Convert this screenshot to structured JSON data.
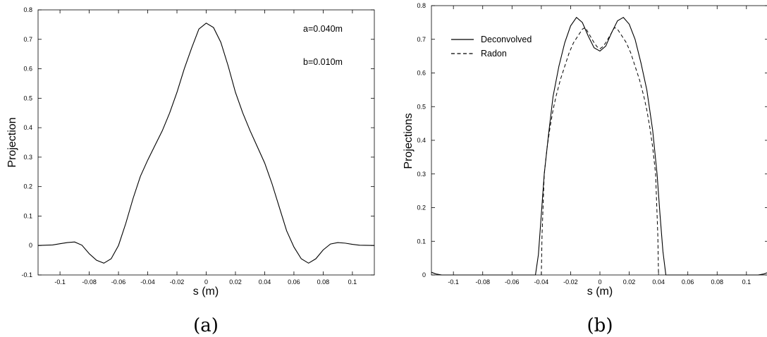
{
  "chart_data": [
    {
      "type": "line",
      "caption": "(a)",
      "xlabel": "s (m)",
      "ylabel": "Projection",
      "xlim": [
        -0.115,
        0.115
      ],
      "ylim": [
        -0.1,
        0.8
      ],
      "xticks": [
        -0.1,
        -0.08,
        -0.06,
        -0.04,
        -0.02,
        0,
        0.02,
        0.04,
        0.06,
        0.08,
        0.1
      ],
      "yticks": [
        -0.1,
        0,
        0.1,
        0.2,
        0.3,
        0.4,
        0.5,
        0.6,
        0.7,
        0.8
      ],
      "xtick_labels": [
        "-0.1",
        "-0.08",
        "-0.06",
        "-0.04",
        "-0.02",
        "0",
        "0.02",
        "0.04",
        "0.06",
        "0.08",
        "0.1"
      ],
      "ytick_labels": [
        "-0.1",
        "0",
        "0.1",
        "0.2",
        "0.3",
        "0.4",
        "0.5",
        "0.6",
        "0.7",
        "0.8"
      ],
      "annotations": [
        "a=0.040m",
        "b=0.010m"
      ],
      "grid": false,
      "series": [
        {
          "style": "solid",
          "x": [
            -0.115,
            -0.105,
            -0.1,
            -0.095,
            -0.09,
            -0.085,
            -0.08,
            -0.075,
            -0.07,
            -0.065,
            -0.06,
            -0.055,
            -0.05,
            -0.045,
            -0.04,
            -0.035,
            -0.03,
            -0.025,
            -0.02,
            -0.015,
            -0.01,
            -0.005,
            0,
            0.005,
            0.01,
            0.015,
            0.02,
            0.025,
            0.03,
            0.035,
            0.04,
            0.045,
            0.05,
            0.055,
            0.06,
            0.065,
            0.07,
            0.075,
            0.08,
            0.085,
            0.09,
            0.095,
            0.1,
            0.105,
            0.115
          ],
          "y": [
            0,
            0.002,
            0.006,
            0.01,
            0.012,
            0.001,
            -0.028,
            -0.05,
            -0.06,
            -0.045,
            0.0,
            0.075,
            0.16,
            0.235,
            0.29,
            0.34,
            0.39,
            0.45,
            0.52,
            0.6,
            0.67,
            0.735,
            0.755,
            0.74,
            0.69,
            0.61,
            0.52,
            0.45,
            0.39,
            0.335,
            0.28,
            0.21,
            0.13,
            0.05,
            -0.005,
            -0.045,
            -0.06,
            -0.045,
            -0.015,
            0.005,
            0.01,
            0.008,
            0.004,
            0.001,
            0
          ]
        }
      ]
    },
    {
      "type": "line",
      "caption": "(b)",
      "xlabel": "s (m)",
      "ylabel": "Projections",
      "xlim": [
        -0.115,
        0.115
      ],
      "ylim": [
        0,
        0.8
      ],
      "xticks": [
        -0.1,
        -0.08,
        -0.06,
        -0.04,
        -0.02,
        0,
        0.02,
        0.04,
        0.06,
        0.08,
        0.1
      ],
      "yticks": [
        0,
        0.1,
        0.2,
        0.3,
        0.4,
        0.5,
        0.6,
        0.7,
        0.8
      ],
      "xtick_labels": [
        "-0.1",
        "-0.08",
        "-0.06",
        "-0.04",
        "-0.02",
        "0",
        "0.02",
        "0.04",
        "0.06",
        "0.08",
        "0.1"
      ],
      "ytick_labels": [
        "0",
        "0.1",
        "0.2",
        "0.3",
        "0.4",
        "0.5",
        "0.6",
        "0.7",
        "0.8"
      ],
      "legend": "top-left",
      "grid": false,
      "series": [
        {
          "name": "Deconvolved",
          "style": "solid",
          "x": [
            -0.115,
            -0.112,
            -0.108,
            -0.05,
            -0.044,
            -0.042,
            -0.04,
            -0.038,
            -0.035,
            -0.032,
            -0.028,
            -0.024,
            -0.02,
            -0.016,
            -0.012,
            -0.008,
            -0.004,
            0,
            0.004,
            0.008,
            0.012,
            0.016,
            0.02,
            0.024,
            0.028,
            0.032,
            0.036,
            0.039,
            0.041,
            0.043,
            0.045,
            0.05,
            0.108,
            0.112,
            0.115
          ],
          "y": [
            0.008,
            0.003,
            0,
            0,
            0,
            0.06,
            0.18,
            0.3,
            0.42,
            0.53,
            0.62,
            0.69,
            0.74,
            0.765,
            0.75,
            0.71,
            0.675,
            0.665,
            0.68,
            0.72,
            0.755,
            0.765,
            0.745,
            0.7,
            0.63,
            0.55,
            0.43,
            0.3,
            0.18,
            0.07,
            0,
            0,
            0,
            0.003,
            0.008
          ]
        },
        {
          "name": "Radon",
          "style": "dashed",
          "x": [
            -0.04,
            -0.0395,
            -0.038,
            -0.036,
            -0.034,
            -0.032,
            -0.03,
            -0.027,
            -0.024,
            -0.021,
            -0.018,
            -0.015,
            -0.012,
            -0.01,
            -0.008,
            -0.006,
            -0.004,
            -0.002,
            0,
            0.002,
            0.004,
            0.006,
            0.008,
            0.01,
            0.012,
            0.015,
            0.018,
            0.021,
            0.024,
            0.027,
            0.03,
            0.032,
            0.034,
            0.036,
            0.038,
            0.0395,
            0.04
          ],
          "y": [
            0,
            0.12,
            0.3,
            0.38,
            0.44,
            0.49,
            0.53,
            0.58,
            0.62,
            0.66,
            0.69,
            0.71,
            0.73,
            0.735,
            0.72,
            0.705,
            0.69,
            0.678,
            0.672,
            0.678,
            0.69,
            0.705,
            0.72,
            0.735,
            0.73,
            0.71,
            0.69,
            0.66,
            0.62,
            0.58,
            0.53,
            0.49,
            0.44,
            0.38,
            0.3,
            0.12,
            0
          ]
        }
      ]
    }
  ]
}
